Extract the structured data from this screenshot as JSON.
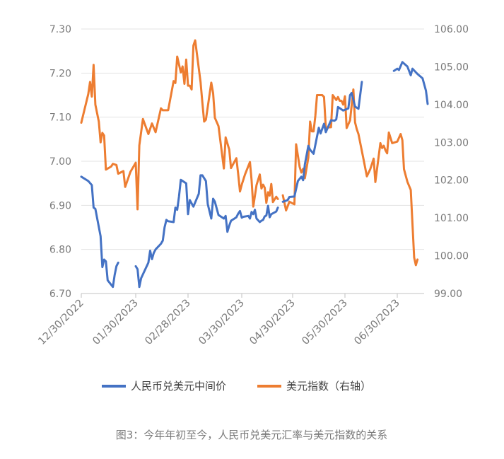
{
  "caption": "图3：今年年初至今，人民币兑美元汇率与美元指数的关系",
  "chart_data": {
    "type": "line",
    "title": "",
    "x_tick_labels": [
      "12/30/2022",
      "01/30/2023",
      "02/28/2023",
      "03/30/2023",
      "04/30/2023",
      "05/30/2023",
      "06/30/2023"
    ],
    "y_left": {
      "ticks": [
        "7.30",
        "7.20",
        "7.10",
        "7.00",
        "6.90",
        "6.80",
        "6.70"
      ],
      "min": 6.7,
      "max": 7.3
    },
    "y_right": {
      "ticks": [
        "106.00",
        "105.00",
        "104.00",
        "103.00",
        "102.00",
        "101.00",
        "100.00",
        "99.00"
      ],
      "min": 99.0,
      "max": 106.0
    },
    "grid": "horizontal",
    "legend_position": "bottom",
    "series": [
      {
        "name": "人民币兑美元中间价",
        "axis": "left",
        "color": "#4472c4",
        "segments": [
          [
            [
              "2022-12-30",
              6.965
            ],
            [
              "2023-01-03",
              6.955
            ],
            [
              "2023-01-05",
              6.946
            ],
            [
              "2023-01-06",
              6.895
            ],
            [
              "2023-01-07",
              6.892
            ],
            [
              "2023-01-10",
              6.83
            ],
            [
              "2023-01-11",
              6.76
            ],
            [
              "2023-01-12",
              6.777
            ],
            [
              "2023-01-13",
              6.773
            ],
            [
              "2023-01-14",
              6.73
            ],
            [
              "2023-01-17",
              6.715
            ],
            [
              "2023-01-18",
              6.742
            ],
            [
              "2023-01-19",
              6.762
            ],
            [
              "2023-01-20",
              6.77
            ]
          ],
          [
            [
              "2023-01-30",
              6.762
            ],
            [
              "2023-01-31",
              6.755
            ],
            [
              "2023-02-01",
              6.715
            ],
            [
              "2023-02-02",
              6.735
            ],
            [
              "2023-02-06",
              6.77
            ],
            [
              "2023-02-07",
              6.797
            ],
            [
              "2023-02-08",
              6.778
            ],
            [
              "2023-02-09",
              6.792
            ],
            [
              "2023-02-10",
              6.8
            ],
            [
              "2023-02-13",
              6.813
            ],
            [
              "2023-02-14",
              6.82
            ],
            [
              "2023-02-15",
              6.85
            ],
            [
              "2023-02-16",
              6.867
            ],
            [
              "2023-02-17",
              6.864
            ],
            [
              "2023-02-20",
              6.862
            ],
            [
              "2023-02-21",
              6.895
            ],
            [
              "2023-02-22",
              6.89
            ],
            [
              "2023-02-23",
              6.92
            ],
            [
              "2023-02-24",
              6.958
            ],
            [
              "2023-02-27",
              6.95
            ],
            [
              "2023-02-28",
              6.88
            ],
            [
              "2023-03-01",
              6.912
            ],
            [
              "2023-03-03",
              6.897
            ],
            [
              "2023-03-06",
              6.926
            ],
            [
              "2023-03-07",
              6.968
            ],
            [
              "2023-03-08",
              6.968
            ],
            [
              "2023-03-10",
              6.955
            ],
            [
              "2023-03-11",
              6.903
            ],
            [
              "2023-03-13",
              6.87
            ],
            [
              "2023-03-14",
              6.915
            ],
            [
              "2023-03-15",
              6.908
            ],
            [
              "2023-03-17",
              6.878
            ],
            [
              "2023-03-20",
              6.87
            ],
            [
              "2023-03-21",
              6.876
            ],
            [
              "2023-03-22",
              6.84
            ],
            [
              "2023-03-23",
              6.854
            ],
            [
              "2023-03-24",
              6.865
            ],
            [
              "2023-03-27",
              6.873
            ],
            [
              "2023-03-28",
              6.881
            ],
            [
              "2023-03-29",
              6.887
            ],
            [
              "2023-03-30",
              6.872
            ],
            [
              "2023-03-31",
              6.874
            ],
            [
              "2023-04-03",
              6.876
            ],
            [
              "2023-04-04",
              6.87
            ],
            [
              "2023-04-05",
              6.885
            ],
            [
              "2023-04-06",
              6.88
            ],
            [
              "2023-04-07",
              6.89
            ],
            [
              "2023-04-08",
              6.87
            ],
            [
              "2023-04-10",
              6.862
            ],
            [
              "2023-04-11",
              6.865
            ],
            [
              "2023-04-12",
              6.867
            ],
            [
              "2023-04-13",
              6.875
            ],
            [
              "2023-04-14",
              6.877
            ],
            [
              "2023-04-15",
              6.899
            ],
            [
              "2023-04-16",
              6.873
            ],
            [
              "2023-04-17",
              6.88
            ],
            [
              "2023-04-19",
              6.884
            ],
            [
              "2023-04-20",
              6.886
            ],
            [
              "2023-04-21",
              6.895
            ]
          ],
          [
            [
              "2023-04-24",
              6.908
            ],
            [
              "2023-04-27",
              6.912
            ],
            [
              "2023-04-28",
              6.919
            ],
            [
              "2023-05-01",
              6.92
            ],
            [
              "2023-05-03",
              6.955
            ],
            [
              "2023-05-05",
              6.965
            ],
            [
              "2023-05-06",
              6.957
            ],
            [
              "2023-05-07",
              6.993
            ],
            [
              "2023-05-09",
              7.035
            ],
            [
              "2023-05-10",
              7.026
            ],
            [
              "2023-05-12",
              7.017
            ],
            [
              "2023-05-15",
              7.076
            ],
            [
              "2023-05-16",
              7.063
            ],
            [
              "2023-05-18",
              7.085
            ],
            [
              "2023-05-19",
              7.066
            ],
            [
              "2023-05-22",
              7.093
            ],
            [
              "2023-05-24",
              7.092
            ],
            [
              "2023-05-25",
              7.095
            ],
            [
              "2023-05-26",
              7.123
            ],
            [
              "2023-05-29",
              7.115
            ],
            [
              "2023-06-01",
              7.12
            ],
            [
              "2023-06-02",
              7.15
            ],
            [
              "2023-06-03",
              7.155
            ],
            [
              "2023-06-05",
              7.124
            ],
            [
              "2023-06-07",
              7.119
            ],
            [
              "2023-06-09",
              7.18
            ]
          ],
          [
            [
              "2023-06-28",
              7.205
            ],
            [
              "2023-06-30",
              7.21
            ],
            [
              "2023-07-01",
              7.207
            ],
            [
              "2023-07-03",
              7.225
            ],
            [
              "2023-07-06",
              7.215
            ],
            [
              "2023-07-08",
              7.195
            ],
            [
              "2023-07-09",
              7.21
            ],
            [
              "2023-07-12",
              7.198
            ],
            [
              "2023-07-15",
              7.188
            ],
            [
              "2023-07-17",
              7.16
            ],
            [
              "2023-07-18",
              7.13
            ]
          ]
        ]
      },
      {
        "name": "美元指数（右轴）",
        "axis": "right",
        "color": "#ed7d31",
        "segments": [
          [
            [
              "2022-12-30",
              103.52
            ],
            [
              "2023-01-03",
              104.28
            ],
            [
              "2023-01-04",
              104.6
            ],
            [
              "2023-01-05",
              104.21
            ],
            [
              "2023-01-06",
              105.05
            ],
            [
              "2023-01-07",
              104.0
            ],
            [
              "2023-01-09",
              103.55
            ],
            [
              "2023-01-10",
              103.0
            ],
            [
              "2023-01-11",
              103.25
            ],
            [
              "2023-01-12",
              103.18
            ],
            [
              "2023-01-13",
              102.28
            ],
            [
              "2023-01-16",
              102.36
            ],
            [
              "2023-01-17",
              102.43
            ],
            [
              "2023-01-19",
              102.4
            ],
            [
              "2023-01-20",
              102.17
            ],
            [
              "2023-01-23",
              102.24
            ],
            [
              "2023-01-24",
              101.82
            ],
            [
              "2023-01-27",
              102.22
            ],
            [
              "2023-01-30",
              102.46
            ],
            [
              "2023-01-31",
              101.23
            ],
            [
              "2023-02-01",
              102.92
            ],
            [
              "2023-02-03",
              103.62
            ],
            [
              "2023-02-06",
              103.22
            ],
            [
              "2023-02-08",
              103.5
            ],
            [
              "2023-02-10",
              103.27
            ],
            [
              "2023-02-13",
              103.9
            ],
            [
              "2023-02-14",
              103.85
            ],
            [
              "2023-02-17",
              103.85
            ],
            [
              "2023-02-20",
              104.62
            ],
            [
              "2023-02-21",
              104.57
            ],
            [
              "2023-02-22",
              105.27
            ],
            [
              "2023-02-24",
              104.85
            ],
            [
              "2023-02-25",
              105.01
            ],
            [
              "2023-02-26",
              104.55
            ],
            [
              "2023-02-27",
              105.19
            ],
            [
              "2023-02-28",
              104.5
            ],
            [
              "2023-03-01",
              104.5
            ],
            [
              "2023-03-02",
              104.4
            ],
            [
              "2023-03-03",
              105.56
            ],
            [
              "2023-03-04",
              105.7
            ],
            [
              "2023-03-07",
              104.6
            ],
            [
              "2023-03-08",
              104.05
            ],
            [
              "2023-03-09",
              103.55
            ],
            [
              "2023-03-10",
              103.6
            ],
            [
              "2023-03-13",
              104.58
            ],
            [
              "2023-03-14",
              104.3
            ],
            [
              "2023-03-15",
              103.65
            ],
            [
              "2023-03-17",
              103.43
            ],
            [
              "2023-03-20",
              102.31
            ],
            [
              "2023-03-21",
              103.13
            ],
            [
              "2023-03-23",
              102.81
            ],
            [
              "2023-03-24",
              102.32
            ],
            [
              "2023-03-27",
              102.58
            ],
            [
              "2023-03-28",
              102.17
            ],
            [
              "2023-03-29",
              101.7
            ],
            [
              "2023-03-30",
              101.88
            ],
            [
              "2023-04-01",
              102.15
            ],
            [
              "2023-04-04",
              102.48
            ],
            [
              "2023-04-05",
              102.0
            ],
            [
              "2023-04-06",
              101.3
            ],
            [
              "2023-04-08",
              101.87
            ],
            [
              "2023-04-10",
              102.15
            ],
            [
              "2023-04-11",
              101.78
            ],
            [
              "2023-04-12",
              101.88
            ],
            [
              "2023-04-13",
              101.8
            ],
            [
              "2023-04-14",
              101.4
            ],
            [
              "2023-04-15",
              101.68
            ],
            [
              "2023-04-16",
              101.59
            ],
            [
              "2023-04-17",
              101.9
            ],
            [
              "2023-04-18",
              101.42
            ],
            [
              "2023-04-20",
              101.56
            ],
            [
              "2023-04-21",
              101.5
            ]
          ],
          [
            [
              "2023-04-24",
              101.6
            ],
            [
              "2023-04-26",
              101.2
            ],
            [
              "2023-04-28",
              101.43
            ],
            [
              "2023-05-01",
              101.36
            ],
            [
              "2023-05-02",
              102.95
            ],
            [
              "2023-05-04",
              102.35
            ],
            [
              "2023-05-05",
              102.2
            ],
            [
              "2023-05-06",
              102.3
            ],
            [
              "2023-05-07",
              102.05
            ],
            [
              "2023-05-09",
              102.6
            ],
            [
              "2023-05-10",
              103.55
            ],
            [
              "2023-05-11",
              103.29
            ],
            [
              "2023-05-12",
              103.29
            ],
            [
              "2023-05-13",
              103.7
            ],
            [
              "2023-05-14",
              104.25
            ],
            [
              "2023-05-15",
              104.25
            ],
            [
              "2023-05-17",
              104.25
            ],
            [
              "2023-05-18",
              104.2
            ],
            [
              "2023-05-19",
              103.39
            ],
            [
              "2023-05-22",
              103.4
            ],
            [
              "2023-05-23",
              104.25
            ],
            [
              "2023-05-25",
              104.12
            ],
            [
              "2023-05-26",
              104.2
            ],
            [
              "2023-05-27",
              104.1
            ],
            [
              "2023-05-28",
              104.1
            ],
            [
              "2023-05-29",
              104.0
            ],
            [
              "2023-05-30",
              104.22
            ],
            [
              "2023-05-31",
              103.38
            ],
            [
              "2023-06-02",
              103.58
            ],
            [
              "2023-06-04",
              104.4
            ],
            [
              "2023-06-05",
              103.53
            ],
            [
              "2023-06-06",
              103.35
            ],
            [
              "2023-06-07",
              103.22
            ],
            [
              "2023-06-10",
              102.55
            ],
            [
              "2023-06-12",
              102.1
            ],
            [
              "2023-06-14",
              102.29
            ],
            [
              "2023-06-16",
              102.57
            ],
            [
              "2023-06-17",
              101.95
            ],
            [
              "2023-06-20",
              102.98
            ],
            [
              "2023-06-21",
              102.85
            ],
            [
              "2023-06-22",
              102.91
            ],
            [
              "2023-06-23",
              102.79
            ],
            [
              "2023-06-24",
              102.71
            ],
            [
              "2023-06-25",
              103.26
            ],
            [
              "2023-06-27",
              102.98
            ],
            [
              "2023-06-30",
              103.02
            ],
            [
              "2023-07-02",
              103.22
            ],
            [
              "2023-07-03",
              103.06
            ],
            [
              "2023-07-04",
              102.29
            ],
            [
              "2023-07-06",
              101.96
            ],
            [
              "2023-07-08",
              101.74
            ],
            [
              "2023-07-10",
              99.95
            ],
            [
              "2023-07-11",
              99.75
            ],
            [
              "2023-07-12",
              99.9
            ]
          ]
        ]
      }
    ]
  }
}
